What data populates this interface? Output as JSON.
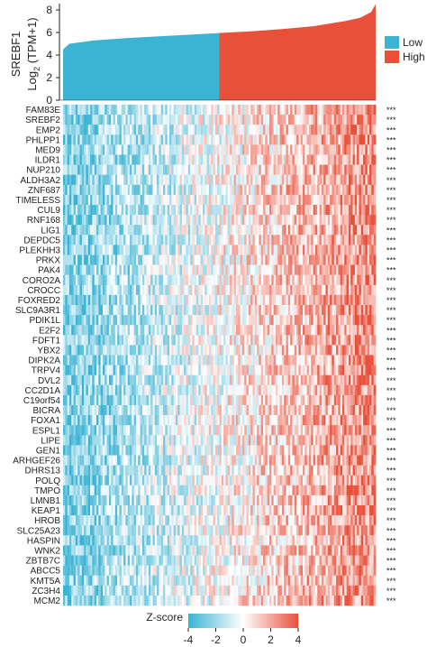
{
  "chart_data": [
    {
      "type": "area",
      "ylabel_line1": "SREBF1",
      "ylabel_line2": "Log2 (TPM+1)",
      "ylabel_line2_parts": {
        "pre": "Log",
        "sub": "2",
        "post": " (TPM+1)"
      },
      "ylim": [
        0,
        8
      ],
      "yticks": [
        "0",
        "2",
        "4",
        "6",
        "8"
      ],
      "legend_placement": "right",
      "series": [
        {
          "name": "Low",
          "color": "#3bb3d3",
          "x": [
            0,
            0.02,
            0.1,
            0.2,
            0.3,
            0.4,
            0.5
          ],
          "y": [
            4.5,
            5.0,
            5.3,
            5.5,
            5.65,
            5.8,
            5.95
          ]
        },
        {
          "name": "High",
          "color": "#e8503a",
          "x": [
            0.5,
            0.6,
            0.7,
            0.8,
            0.9,
            0.95,
            0.985,
            1.0
          ],
          "y": [
            5.95,
            6.1,
            6.3,
            6.55,
            7.0,
            7.3,
            7.8,
            8.5
          ]
        }
      ]
    },
    {
      "type": "heatmap",
      "title": "",
      "rows": [
        "FAM83E",
        "SREBF2",
        "EMP2",
        "PHLPP1",
        "MED9",
        "ILDR1",
        "NUP210",
        "ALDH3A2",
        "ZNF687",
        "TIMELESS",
        "CUL9",
        "RNF168",
        "LIG1",
        "DEPDC5",
        "PLEKHH3",
        "PRKX",
        "PAK4",
        "CORO2A",
        "CROCC",
        "FOXRED2",
        "SLC9A3R1",
        "PDIK1L",
        "E2F2",
        "FDFT1",
        "YBX2",
        "DIPK2A",
        "TRPV4",
        "DVL2",
        "CC2D1A",
        "C19orf54",
        "BICRA",
        "FOXA1",
        "ESPL1",
        "LIPE",
        "GEN1",
        "ARHGEF26",
        "DHRS13",
        "POLQ",
        "TMPO",
        "LMNB1",
        "KEAP1",
        "HROB",
        "SLC25A23",
        "HASPIN",
        "WNK2",
        "ZBTB7C",
        "ABCC5",
        "KMT5A",
        "ZC3H4",
        "MCM2"
      ],
      "significance": [
        "***",
        "***",
        "***",
        "***",
        "***",
        "***",
        "***",
        "***",
        "***",
        "***",
        "***",
        "***",
        "***",
        "***",
        "***",
        "***",
        "***",
        "***",
        "***",
        "***",
        "***",
        "***",
        "***",
        "***",
        "***",
        "***",
        "***",
        "***",
        "***",
        "***",
        "***",
        "***",
        "***",
        "***",
        "***",
        "***",
        "***",
        "***",
        "***",
        "***",
        "***",
        "***",
        "***",
        "***",
        "***",
        "***",
        "***",
        "***",
        "***",
        "***"
      ],
      "colorbar": {
        "label": "Z-score",
        "ticks": [
          "-4",
          "-2",
          "0",
          "2",
          "4"
        ],
        "range": [
          -4,
          4
        ],
        "colors": [
          "#3bb3d3",
          "#ffffff",
          "#e8503a"
        ]
      }
    }
  ]
}
